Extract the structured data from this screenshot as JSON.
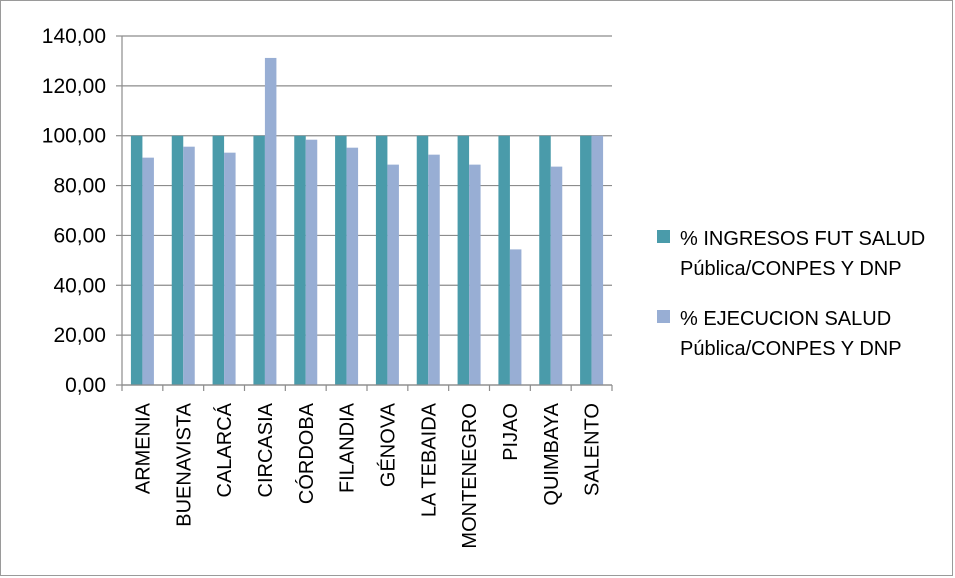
{
  "chart_data": {
    "type": "bar",
    "categories": [
      "ARMENIA",
      "BUENAVISTA",
      "CALARCÁ",
      "CIRCASIA",
      "CÓRDOBA",
      "FILANDIA",
      "GÉNOVA",
      "LA TEBAIDA",
      "MONTENEGRO",
      "PIJAO",
      "QUIMBAYA",
      "SALENTO"
    ],
    "series": [
      {
        "name": "% INGRESOS FUT SALUD Pública/CONPES Y DNP",
        "name_lines": [
          "% INGRESOS FUT SALUD",
          "Pública/CONPES Y DNP"
        ],
        "color": "#4A9BAA",
        "values": [
          100,
          100,
          100,
          100,
          100,
          100,
          100,
          100,
          100,
          100,
          100,
          100
        ]
      },
      {
        "name": "% EJECUCION SALUD Pública/CONPES Y DNP",
        "name_lines": [
          "% EJECUCION SALUD",
          "Pública/CONPES Y DNP"
        ],
        "color": "#98AED4",
        "values": [
          91.2,
          95.6,
          93.2,
          131.2,
          98.4,
          95.2,
          88.4,
          92.4,
          88.4,
          54.4,
          87.6,
          100
        ]
      }
    ],
    "yticks": [
      "0,00",
      "20,00",
      "40,00",
      "60,00",
      "80,00",
      "100,00",
      "120,00",
      "140,00"
    ],
    "ylim": [
      0,
      140
    ],
    "grid": true,
    "legend_position": "right"
  }
}
